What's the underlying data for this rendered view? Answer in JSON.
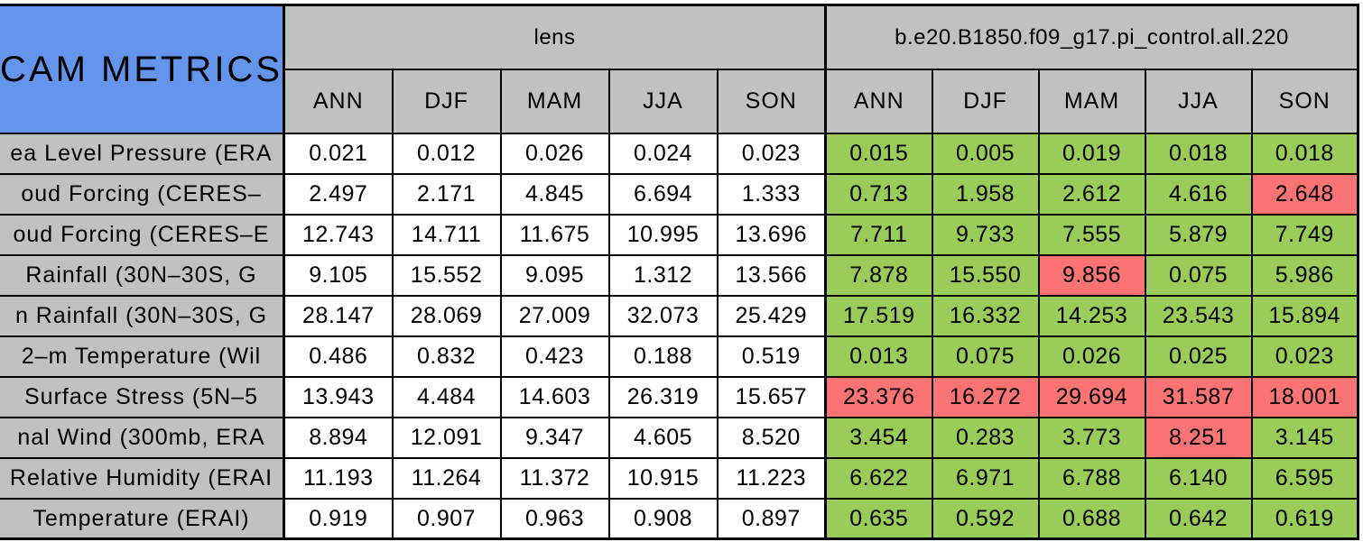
{
  "title": "CAM METRICS",
  "colors": {
    "title_blue": "#6495ed",
    "header_gray": "#c1c1c1",
    "better_green": "#99cc59",
    "worse_red": "#fb7373",
    "cell_white": "#ffffff",
    "border_black": "#000000"
  },
  "table": {
    "group_headers": [
      {
        "label": "lens"
      },
      {
        "label": "b.e20.B1850.f09_g17.pi_control.all.220"
      }
    ],
    "season_headers": [
      "ANN",
      "DJF",
      "MAM",
      "JJA",
      "SON"
    ],
    "rows": [
      {
        "label": "ea Level Pressure (ERA",
        "lens": [
          "0.021",
          "0.012",
          "0.026",
          "0.024",
          "0.023"
        ],
        "control": [
          "0.015",
          "0.005",
          "0.019",
          "0.018",
          "0.018"
        ],
        "control_status": [
          "better",
          "better",
          "better",
          "better",
          "better"
        ]
      },
      {
        "label": "oud Forcing (CERES–",
        "lens": [
          "2.497",
          "2.171",
          "4.845",
          "6.694",
          "1.333"
        ],
        "control": [
          "0.713",
          "1.958",
          "2.612",
          "4.616",
          "2.648"
        ],
        "control_status": [
          "better",
          "better",
          "better",
          "better",
          "worse"
        ]
      },
      {
        "label": "oud Forcing (CERES–E",
        "lens": [
          "12.743",
          "14.711",
          "11.675",
          "10.995",
          "13.696"
        ],
        "control": [
          "7.711",
          "9.733",
          "7.555",
          "5.879",
          "7.749"
        ],
        "control_status": [
          "better",
          "better",
          "better",
          "better",
          "better"
        ]
      },
      {
        "label": "Rainfall (30N–30S, G",
        "lens": [
          "9.105",
          "15.552",
          "9.095",
          "1.312",
          "13.566"
        ],
        "control": [
          "7.878",
          "15.550",
          "9.856",
          "0.075",
          "5.986"
        ],
        "control_status": [
          "better",
          "better",
          "worse",
          "better",
          "better"
        ]
      },
      {
        "label": "n Rainfall (30N–30S, G",
        "lens": [
          "28.147",
          "28.069",
          "27.009",
          "32.073",
          "25.429"
        ],
        "control": [
          "17.519",
          "16.332",
          "14.253",
          "23.543",
          "15.894"
        ],
        "control_status": [
          "better",
          "better",
          "better",
          "better",
          "better"
        ]
      },
      {
        "label": "2–m Temperature (Wil",
        "lens": [
          "0.486",
          "0.832",
          "0.423",
          "0.188",
          "0.519"
        ],
        "control": [
          "0.013",
          "0.075",
          "0.026",
          "0.025",
          "0.023"
        ],
        "control_status": [
          "better",
          "better",
          "better",
          "better",
          "better"
        ]
      },
      {
        "label": "Surface Stress (5N–5",
        "lens": [
          "13.943",
          "4.484",
          "14.603",
          "26.319",
          "15.657"
        ],
        "control": [
          "23.376",
          "16.272",
          "29.694",
          "31.587",
          "18.001"
        ],
        "control_status": [
          "worse",
          "worse",
          "worse",
          "worse",
          "worse"
        ]
      },
      {
        "label": "nal Wind (300mb, ERA",
        "lens": [
          "8.894",
          "12.091",
          "9.347",
          "4.605",
          "8.520"
        ],
        "control": [
          "3.454",
          "0.283",
          "3.773",
          "8.251",
          "3.145"
        ],
        "control_status": [
          "better",
          "better",
          "better",
          "worse",
          "better"
        ]
      },
      {
        "label": "Relative Humidity (ERAI",
        "lens": [
          "11.193",
          "11.264",
          "11.372",
          "10.915",
          "11.223"
        ],
        "control": [
          "6.622",
          "6.971",
          "6.788",
          "6.140",
          "6.595"
        ],
        "control_status": [
          "better",
          "better",
          "better",
          "better",
          "better"
        ]
      },
      {
        "label": "Temperature (ERAI)",
        "lens": [
          "0.919",
          "0.907",
          "0.963",
          "0.908",
          "0.897"
        ],
        "control": [
          "0.635",
          "0.592",
          "0.688",
          "0.642",
          "0.619"
        ],
        "control_status": [
          "better",
          "better",
          "better",
          "better",
          "better"
        ]
      }
    ]
  }
}
